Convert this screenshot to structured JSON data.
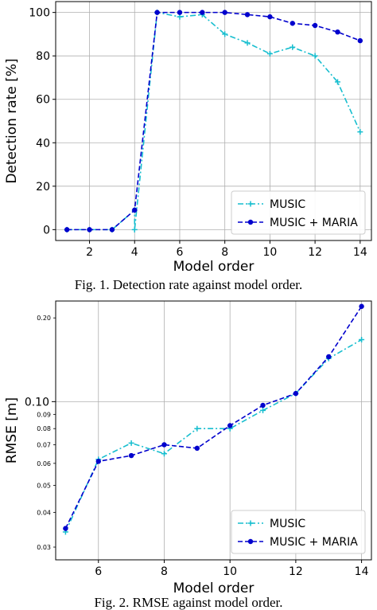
{
  "chart_data": [
    {
      "type": "line",
      "caption": "Fig. 1. Detection rate against model order.",
      "xlabel": "Model order",
      "ylabel": "Detection rate [%]",
      "xlim": [
        0.5,
        14.5
      ],
      "ylim": [
        -5,
        105
      ],
      "xticks": [
        2,
        4,
        6,
        8,
        10,
        12,
        14
      ],
      "xtick_labels": [
        "2",
        "4",
        "6",
        "8",
        "10",
        "12",
        "14"
      ],
      "yticks": [
        0,
        20,
        40,
        60,
        80,
        100
      ],
      "ytick_labels": [
        "0",
        "20",
        "40",
        "60",
        "80",
        "100"
      ],
      "grid": true,
      "legend_position": "lower-right",
      "series": [
        {
          "name": "MUSIC",
          "color": "#17becf",
          "style": "dash-dot",
          "marker": "plus",
          "x": [
            1,
            2,
            3,
            4,
            4,
            5,
            6,
            7,
            8,
            9,
            10,
            11,
            12,
            13,
            14
          ],
          "y": [
            0,
            0,
            0,
            9,
            0,
            100,
            98,
            99,
            90,
            86,
            81,
            84,
            80,
            68,
            45
          ]
        },
        {
          "name": "MUSIC + MARIA",
          "color": "#0000cd",
          "style": "dashed",
          "marker": "circle",
          "x": [
            1,
            2,
            3,
            4,
            5,
            6,
            7,
            8,
            9,
            10,
            11,
            12,
            13,
            14
          ],
          "y": [
            0,
            0,
            0,
            9,
            100,
            100,
            100,
            100,
            99,
            98,
            95,
            94,
            91,
            87
          ]
        }
      ]
    },
    {
      "type": "line",
      "caption": "Fig. 2. RMSE against model order.",
      "xlabel": "Model order",
      "ylabel": "RMSE [m]",
      "yscale": "log",
      "xlim": [
        4.7,
        14.3
      ],
      "ylim": [
        0.027,
        0.23
      ],
      "xticks": [
        6,
        8,
        10,
        12,
        14
      ],
      "xtick_labels": [
        "6",
        "8",
        "10",
        "12",
        "14"
      ],
      "yticks_major": [
        0.1
      ],
      "yticks_major_labels": [
        "0.10"
      ],
      "yticks_minor": [
        0.03,
        0.04,
        0.05,
        0.06,
        0.07,
        0.08,
        0.09,
        0.2
      ],
      "yticks_minor_labels": [
        "0.03",
        "0.04",
        "0.05",
        "0.06",
        "0.07",
        "0.08",
        "0.09",
        "0.20"
      ],
      "grid": true,
      "legend_position": "lower-right",
      "series": [
        {
          "name": "MUSIC",
          "color": "#17becf",
          "style": "dash-dot",
          "marker": "plus",
          "x": [
            5,
            6,
            7,
            8,
            9,
            10,
            11,
            12,
            13,
            14
          ],
          "y": [
            0.034,
            0.062,
            0.071,
            0.065,
            0.08,
            0.08,
            0.093,
            0.107,
            0.143,
            0.167
          ]
        },
        {
          "name": "MUSIC + MARIA",
          "color": "#0000cd",
          "style": "dashed",
          "marker": "circle",
          "x": [
            5,
            6,
            7,
            8,
            9,
            10,
            11,
            12,
            13,
            14
          ],
          "y": [
            0.035,
            0.061,
            0.064,
            0.07,
            0.068,
            0.082,
            0.097,
            0.107,
            0.145,
            0.22
          ]
        }
      ]
    }
  ]
}
